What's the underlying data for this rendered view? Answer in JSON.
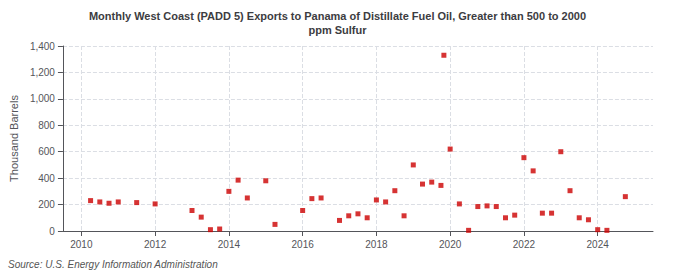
{
  "chart_data": {
    "type": "scatter",
    "title": "Monthly West Coast (PADD 5) Exports to Panama of Distillate Fuel Oil, Greater than 500 to 2000\nppm Sulfur",
    "ylabel": "Thousand Barrels",
    "annotation": "Source: U.S. Energy Information Administration",
    "x": [
      2010.25,
      2010.5,
      2010.75,
      2011.0,
      2011.5,
      2012.0,
      2013.0,
      2013.25,
      2013.5,
      2013.75,
      2014.0,
      2014.25,
      2014.5,
      2015.0,
      2015.25,
      2016.0,
      2016.25,
      2016.5,
      2017.0,
      2017.25,
      2017.5,
      2017.75,
      2018.0,
      2018.25,
      2018.5,
      2018.75,
      2019.0,
      2019.25,
      2019.5,
      2019.75,
      2019.83,
      2020.0,
      2020.25,
      2020.5,
      2020.75,
      2021.0,
      2021.25,
      2021.5,
      2021.75,
      2022.0,
      2022.25,
      2022.5,
      2022.75,
      2023.0,
      2023.25,
      2023.5,
      2023.75,
      2024.0,
      2024.25,
      2024.75
    ],
    "values": [
      230,
      220,
      210,
      220,
      215,
      205,
      155,
      105,
      10,
      15,
      300,
      385,
      250,
      380,
      50,
      155,
      245,
      250,
      80,
      115,
      130,
      100,
      235,
      220,
      305,
      115,
      500,
      355,
      370,
      345,
      1330,
      620,
      205,
      5,
      185,
      190,
      185,
      100,
      120,
      555,
      455,
      135,
      135,
      600,
      305,
      100,
      85,
      10,
      5,
      260
    ],
    "color": "#cc0000",
    "marker": "square",
    "xlim": [
      2009.5,
      2025.5
    ],
    "xticks": [
      2010,
      2012,
      2014,
      2016,
      2018,
      2020,
      2022,
      2024
    ],
    "ylim": [
      0,
      1400
    ],
    "yticks": [
      0,
      200,
      400,
      600,
      800,
      {
        "value": 1000,
        "label": "1,000"
      },
      {
        "value": 1200,
        "label": "1,200"
      },
      {
        "value": 1400,
        "label": "1,400"
      }
    ],
    "grid": true
  }
}
